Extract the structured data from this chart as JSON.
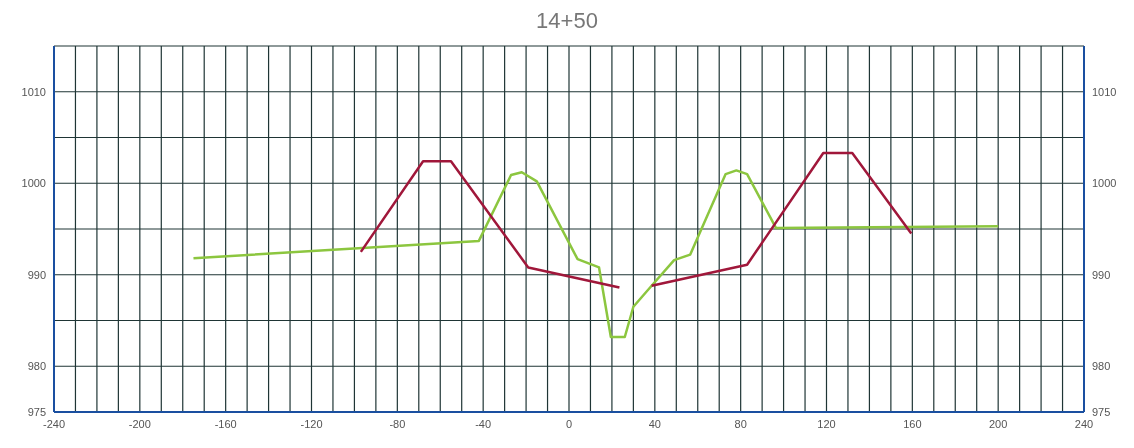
{
  "chart_data": {
    "type": "line",
    "title": "14+50",
    "series": [
      {
        "color": "#8cc63f",
        "x": [
          -175,
          -42,
          -27,
          -22,
          -15,
          4,
          14,
          19.5,
          26,
          30,
          38.5,
          49,
          56.5,
          73,
          78,
          83,
          96.5,
          200
        ],
        "values": [
          991.8,
          993.7,
          1000.9,
          1001.2,
          1000.2,
          991.7,
          990.8,
          983.2,
          983.2,
          986.5,
          988.8,
          991.6,
          992.2,
          1001,
          1001.4,
          1001,
          995.1,
          995.3
        ]
      },
      {
        "color": "#a0173a",
        "x": [
          -97,
          -68,
          -55,
          -19,
          23.5,
          31,
          38.5,
          83,
          118.5,
          132,
          159.5
        ],
        "values": [
          992.5,
          1002.4,
          1002.4,
          990.8,
          988.6,
          null,
          988.8,
          991.1,
          1003.3,
          1003.3,
          994.5
        ]
      }
    ],
    "xlim": [
      -240,
      240
    ],
    "xticks": [
      -240,
      {
        "value": -230,
        "label": null
      },
      {
        "value": -220,
        "label": null
      },
      {
        "value": -210,
        "label": null
      },
      -200,
      {
        "value": -190,
        "label": null
      },
      {
        "value": -180,
        "label": null
      },
      {
        "value": -170,
        "label": null
      },
      -160,
      {
        "value": -150,
        "label": null
      },
      {
        "value": -140,
        "label": null
      },
      {
        "value": -130,
        "label": null
      },
      -120,
      {
        "value": -110,
        "label": null
      },
      {
        "value": -100,
        "label": null
      },
      {
        "value": -90,
        "label": null
      },
      -80,
      {
        "value": -70,
        "label": null
      },
      {
        "value": -60,
        "label": null
      },
      {
        "value": -50,
        "label": null
      },
      -40,
      {
        "value": -30,
        "label": null
      },
      {
        "value": -20,
        "label": null
      },
      {
        "value": -10,
        "label": null
      },
      0,
      {
        "value": 10,
        "label": null
      },
      {
        "value": 20,
        "label": null
      },
      {
        "value": 30,
        "label": null
      },
      40,
      {
        "value": 50,
        "label": null
      },
      {
        "value": 60,
        "label": null
      },
      {
        "value": 70,
        "label": null
      },
      80,
      {
        "value": 90,
        "label": null
      },
      {
        "value": 100,
        "label": null
      },
      {
        "value": 110,
        "label": null
      },
      120,
      {
        "value": 130,
        "label": null
      },
      {
        "value": 140,
        "label": null
      },
      {
        "value": 150,
        "label": null
      },
      160,
      {
        "value": 170,
        "label": null
      },
      {
        "value": 180,
        "label": null
      },
      {
        "value": 190,
        "label": null
      },
      200,
      {
        "value": 210,
        "label": null
      },
      {
        "value": 220,
        "label": null
      },
      {
        "value": 230,
        "label": null
      },
      240
    ],
    "ylim": [
      975,
      1015
    ],
    "yticks": [
      975,
      980,
      {
        "value": 985,
        "label": null
      },
      990,
      {
        "value": 995,
        "label": null
      },
      1000,
      {
        "value": 1005,
        "label": null
      },
      1010,
      {
        "value": 1015,
        "label": null
      }
    ],
    "y2lim": [
      975,
      1015
    ],
    "y2ticks": [
      975,
      980,
      990,
      1000,
      1010
    ],
    "grid": true,
    "marker": "none",
    "line_style": "solid"
  }
}
